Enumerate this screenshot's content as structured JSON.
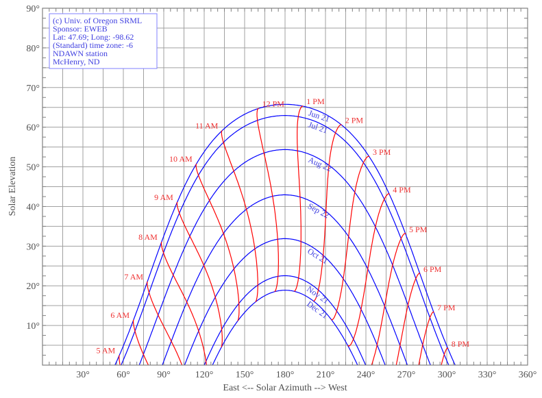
{
  "chart_data": {
    "type": "line",
    "title": "",
    "xlabel": "East <-- Solar Azimuth --> West",
    "ylabel": "Solar Elevation",
    "xlim": [
      0,
      360
    ],
    "ylim": [
      0,
      90
    ],
    "x_ticks": [
      "30°",
      "60°",
      "90°",
      "120°",
      "150°",
      "180°",
      "210°",
      "240°",
      "270°",
      "300°",
      "330°",
      "360°"
    ],
    "y_ticks": [
      "10°",
      "20°",
      "30°",
      "40°",
      "50°",
      "60°",
      "70°",
      "80°",
      "90°"
    ],
    "grid": true,
    "site": {
      "latitude": 47.69,
      "longitude": -98.62,
      "time_zone": -6
    },
    "date_series": [
      {
        "name": "Jun 21",
        "month": 6,
        "day": 21
      },
      {
        "name": "Jul 21",
        "month": 7,
        "day": 21
      },
      {
        "name": "Aug 22",
        "month": 8,
        "day": 22
      },
      {
        "name": "Sep 22",
        "month": 9,
        "day": 22
      },
      {
        "name": "Oct 21",
        "month": 10,
        "day": 21
      },
      {
        "name": "Nov 21",
        "month": 11,
        "day": 21
      },
      {
        "name": "Dec 21",
        "month": 12,
        "day": 21
      }
    ],
    "hour_series": [
      {
        "name": "5 AM",
        "hour": 5
      },
      {
        "name": "6 AM",
        "hour": 6
      },
      {
        "name": "7 AM",
        "hour": 7
      },
      {
        "name": "8 AM",
        "hour": 8
      },
      {
        "name": "9 AM",
        "hour": 9
      },
      {
        "name": "10 AM",
        "hour": 10
      },
      {
        "name": "11 AM",
        "hour": 11
      },
      {
        "name": "12 PM",
        "hour": 12
      },
      {
        "name": "1 PM",
        "hour": 13
      },
      {
        "name": "2 PM",
        "hour": 14
      },
      {
        "name": "3 PM",
        "hour": 15
      },
      {
        "name": "4 PM",
        "hour": 16
      },
      {
        "name": "5 PM",
        "hour": 17
      },
      {
        "name": "6 PM",
        "hour": 18
      },
      {
        "name": "7 PM",
        "hour": 19
      },
      {
        "name": "8 PM",
        "hour": 20
      }
    ],
    "colors": {
      "date_lines": "#0000ff",
      "hour_lines": "#ff0000",
      "grid": "#a0a0a0",
      "legend_text": "#4040e0"
    }
  },
  "info_box": {
    "lines": [
      "(c) Univ. of Oregon SRML",
      "Sponsor: EWEB",
      "Lat: 47.69; Long: -98.62",
      "(Standard) time zone: -6",
      "NDAWN station",
      "McHenry, ND"
    ]
  }
}
